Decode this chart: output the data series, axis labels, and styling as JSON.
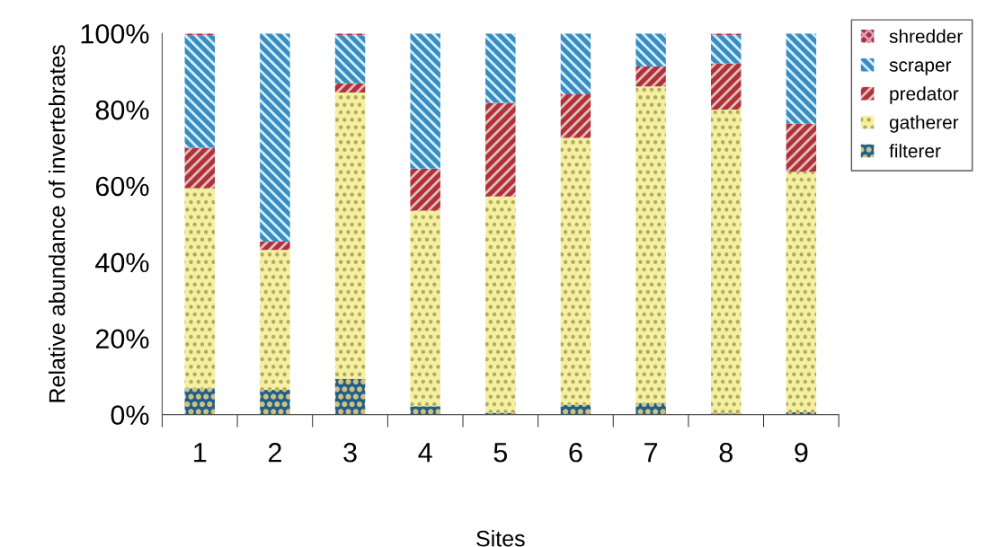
{
  "chart_data": {
    "type": "bar",
    "stacked": true,
    "xlabel": "Sites",
    "ylabel": "Relative abundance of invertebrates",
    "categories": [
      "1",
      "2",
      "3",
      "4",
      "5",
      "6",
      "7",
      "8",
      "9"
    ],
    "series": [
      {
        "name": "filterer",
        "color": "#1f5f8b",
        "values": [
          6.9,
          6.5,
          9.4,
          2.2,
          0.5,
          2.6,
          3.1,
          0.3,
          0.6
        ]
      },
      {
        "name": "gatherer",
        "color": "#f5f0a0",
        "values": [
          52.5,
          36.7,
          75.1,
          51.3,
          56.7,
          70.0,
          83.0,
          79.7,
          63.1
        ]
      },
      {
        "name": "predator",
        "color": "#b03040",
        "values": [
          10.6,
          2.2,
          2.4,
          11.0,
          24.6,
          11.4,
          5.2,
          12.1,
          12.6
        ]
      },
      {
        "name": "scraper",
        "color": "#3a8cc0",
        "values": [
          29.5,
          54.6,
          12.6,
          35.5,
          18.2,
          16.0,
          8.7,
          7.4,
          23.7
        ]
      },
      {
        "name": "shredder",
        "color": "#a03050",
        "values": [
          0.5,
          0,
          0.5,
          0,
          0,
          0,
          0,
          0.5,
          0
        ]
      }
    ],
    "ylim": [
      0,
      100
    ],
    "yticks": [
      {
        "value": 0,
        "label": "0%"
      },
      {
        "value": 20,
        "label": "20%"
      },
      {
        "value": 40,
        "label": "40%"
      },
      {
        "value": 60,
        "label": "60%"
      },
      {
        "value": 80,
        "label": "80%"
      },
      {
        "value": 100,
        "label": "100%"
      }
    ],
    "legend": "top right",
    "grid": false
  }
}
